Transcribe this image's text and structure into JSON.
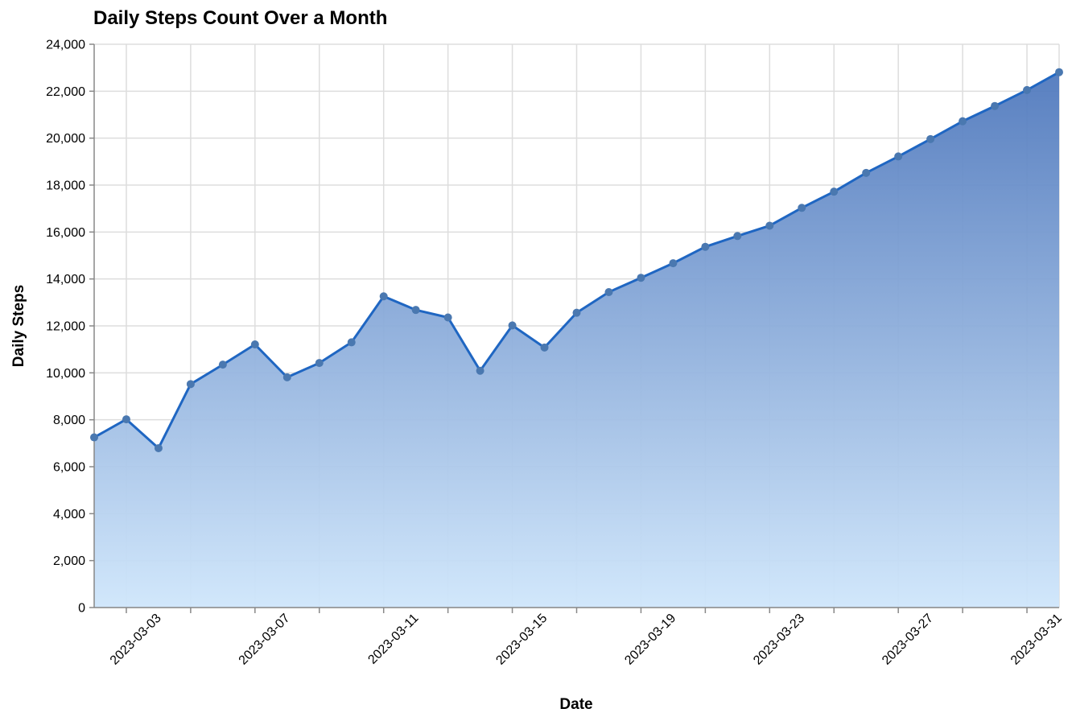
{
  "chart_data": {
    "type": "area",
    "title": "Daily Steps Count Over a Month",
    "xlabel": "Date",
    "ylabel": "Daily Steps",
    "ylim": [
      0,
      24000
    ],
    "y_ticks": [
      0,
      2000,
      4000,
      6000,
      8000,
      10000,
      12000,
      14000,
      16000,
      18000,
      20000,
      22000,
      24000
    ],
    "y_tick_labels": [
      "0",
      "2,000",
      "4,000",
      "6,000",
      "8,000",
      "10,000",
      "12,000",
      "14,000",
      "16,000",
      "18,000",
      "20,000",
      "22,000",
      "24,000"
    ],
    "x_tick_labels": [
      "2023-03-03",
      "2023-03-07",
      "2023-03-11",
      "2023-03-15",
      "2023-03-19",
      "2023-03-23",
      "2023-03-27",
      "2023-03-31"
    ],
    "grid": true,
    "colors": {
      "line": "#1f66c2",
      "point": "#4a78b0",
      "area_top": "#5079bd",
      "area_bottom": "#cfe6fb"
    },
    "x": [
      "2023-03-01",
      "2023-03-02",
      "2023-03-03",
      "2023-03-04",
      "2023-03-05",
      "2023-03-06",
      "2023-03-07",
      "2023-03-08",
      "2023-03-09",
      "2023-03-10",
      "2023-03-11",
      "2023-03-12",
      "2023-03-13",
      "2023-03-14",
      "2023-03-15",
      "2023-03-16",
      "2023-03-17",
      "2023-03-18",
      "2023-03-19",
      "2023-03-20",
      "2023-03-21",
      "2023-03-22",
      "2023-03-23",
      "2023-03-24",
      "2023-03-25",
      "2023-03-26",
      "2023-03-27",
      "2023-03-28",
      "2023-03-29",
      "2023-03-30",
      "2023-03-31"
    ],
    "values": [
      7250,
      8020,
      6790,
      9520,
      10350,
      11210,
      9810,
      10420,
      11300,
      13260,
      12680,
      12360,
      10090,
      12020,
      11080,
      12560,
      13440,
      14050,
      14670,
      15370,
      15830,
      16270,
      17030,
      17720,
      18520,
      19220,
      19960,
      20720,
      21370,
      22050,
      22810
    ]
  }
}
